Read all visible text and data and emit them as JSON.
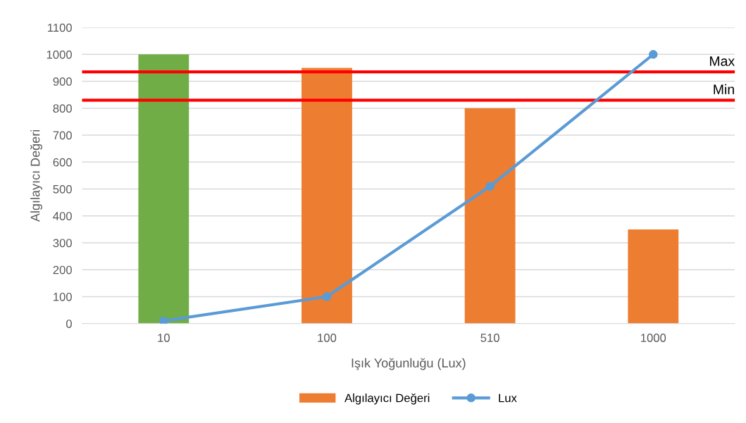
{
  "chart_data": {
    "type": "bar",
    "xlabel": "Işık Yoğunluğu (Lux)",
    "ylabel": "Algılayıcı Değeri",
    "categories": [
      "10",
      "100",
      "510",
      "1000"
    ],
    "series": [
      {
        "name": "Algılayıcı Değeri",
        "color": "#ed7d31",
        "colors": [
          "#70ad47",
          "#ed7d31",
          "#ed7d31",
          "#ed7d31"
        ],
        "values": [
          1000,
          950,
          800,
          350
        ]
      },
      {
        "name": "Lux",
        "type": "line",
        "color": "#5b9bd5",
        "values": [
          10,
          100,
          510,
          1000
        ],
        "marker": "circle",
        "line_style": "solid"
      }
    ],
    "ylim": [
      0,
      1100
    ],
    "yticks": [
      0,
      100,
      200,
      300,
      400,
      500,
      600,
      700,
      800,
      900,
      1000,
      1100
    ],
    "ref_lines": [
      {
        "axis": "y",
        "value": 935,
        "label": "Max",
        "color": "#ff0000"
      },
      {
        "axis": "y",
        "value": 830,
        "label": "Min",
        "color": "#ff0000"
      }
    ],
    "grid": "y",
    "legend": "bottom"
  }
}
